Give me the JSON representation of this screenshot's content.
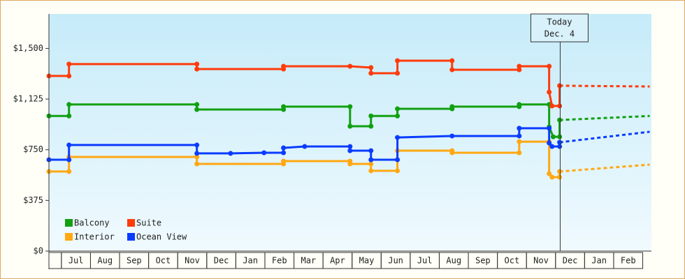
{
  "chart_data": {
    "type": "line",
    "today_label": [
      "Today",
      "Dec. 4"
    ],
    "today_x": 18.16,
    "xlim": [
      0.57,
      21.3
    ],
    "xticks": [
      {
        "value": 1.5,
        "label": "Jul"
      },
      {
        "value": 2.5,
        "label": "Aug"
      },
      {
        "value": 3.5,
        "label": "Sep"
      },
      {
        "value": 4.5,
        "label": "Oct"
      },
      {
        "value": 5.5,
        "label": "Nov"
      },
      {
        "value": 6.5,
        "label": "Dec"
      },
      {
        "value": 7.5,
        "label": "Jan"
      },
      {
        "value": 8.5,
        "label": "Feb"
      },
      {
        "value": 9.5,
        "label": "Mar"
      },
      {
        "value": 10.5,
        "label": "Apr"
      },
      {
        "value": 11.5,
        "label": "May"
      },
      {
        "value": 12.5,
        "label": "Jun"
      },
      {
        "value": 13.5,
        "label": "Jul"
      },
      {
        "value": 14.5,
        "label": "Aug"
      },
      {
        "value": 15.5,
        "label": "Sep"
      },
      {
        "value": 16.5,
        "label": "Oct"
      },
      {
        "value": 17.5,
        "label": "Nov"
      },
      {
        "value": 18.5,
        "label": "Dec"
      },
      {
        "value": 19.5,
        "label": "Jan"
      },
      {
        "value": 20.5,
        "label": "Feb"
      }
    ],
    "ylim": [
      0,
      1755
    ],
    "yticks": [
      {
        "value": 0,
        "label": "$0"
      },
      {
        "value": 375,
        "label": "$375"
      },
      {
        "value": 750,
        "label": "$750"
      },
      {
        "value": 1125,
        "label": "$1,125"
      },
      {
        "value": 1500,
        "label": "$1,500"
      }
    ],
    "series": [
      {
        "name": "Balcony",
        "color": "#11a011",
        "x": [
          0.57,
          1.26,
          1.26,
          5.66,
          5.66,
          8.64,
          8.64,
          10.93,
          10.93,
          11.65,
          11.65,
          12.56,
          12.56,
          14.44,
          14.44,
          16.75,
          16.75,
          17.78,
          17.78,
          17.92,
          18.14,
          18.14
        ],
        "values": [
          1000,
          1000,
          1085,
          1085,
          1048,
          1048,
          1069,
          1069,
          924,
          924,
          1000,
          1000,
          1053,
          1053,
          1069,
          1069,
          1085,
          1085,
          919,
          846,
          846,
          970
        ],
        "forecast": {
          "x": [
            18.14,
            21.24
          ],
          "values": [
            970,
            1000
          ]
        }
      },
      {
        "name": "Suite",
        "color": "#ff3b0a",
        "x": [
          0.57,
          1.26,
          1.26,
          5.66,
          5.66,
          8.64,
          8.64,
          10.93,
          11.65,
          11.65,
          12.56,
          12.56,
          14.44,
          14.44,
          16.75,
          16.75,
          17.78,
          17.78,
          17.88,
          18.14,
          18.14
        ],
        "values": [
          1296,
          1296,
          1384,
          1384,
          1347,
          1347,
          1368,
          1368,
          1358,
          1316,
          1316,
          1409,
          1409,
          1342,
          1342,
          1368,
          1368,
          1177,
          1074,
          1074,
          1224
        ],
        "forecast": {
          "x": [
            18.14,
            21.24
          ],
          "values": [
            1224,
            1218
          ]
        }
      },
      {
        "name": "Interior",
        "color": "#ffa812",
        "x": [
          0.57,
          1.26,
          1.26,
          5.66,
          5.66,
          8.64,
          8.64,
          10.93,
          10.93,
          11.65,
          11.65,
          12.56,
          12.56,
          14.44,
          14.44,
          16.75,
          16.75,
          17.78,
          17.78,
          17.88,
          18.14,
          18.14
        ],
        "values": [
          589,
          589,
          697,
          697,
          645,
          645,
          666,
          666,
          645,
          645,
          594,
          594,
          743,
          743,
          728,
          728,
          810,
          810,
          573,
          547,
          547,
          589
        ],
        "forecast": {
          "x": [
            18.14,
            21.24
          ],
          "values": [
            589,
            640
          ]
        }
      },
      {
        "name": "Ocean View",
        "color": "#0a3cff",
        "x": [
          0.57,
          1.26,
          1.26,
          5.66,
          5.66,
          6.82,
          7.97,
          8.64,
          8.64,
          9.37,
          10.93,
          10.93,
          11.65,
          11.65,
          12.56,
          12.56,
          14.44,
          16.75,
          16.75,
          17.78,
          17.78,
          17.88,
          18.14,
          18.14
        ],
        "values": [
          676,
          676,
          785,
          785,
          723,
          723,
          728,
          728,
          764,
          774,
          774,
          743,
          743,
          676,
          676,
          841,
          852,
          852,
          909,
          909,
          800,
          774,
          774,
          805
        ],
        "forecast": {
          "x": [
            18.14,
            21.24
          ],
          "values": [
            805,
            883
          ]
        }
      }
    ]
  }
}
